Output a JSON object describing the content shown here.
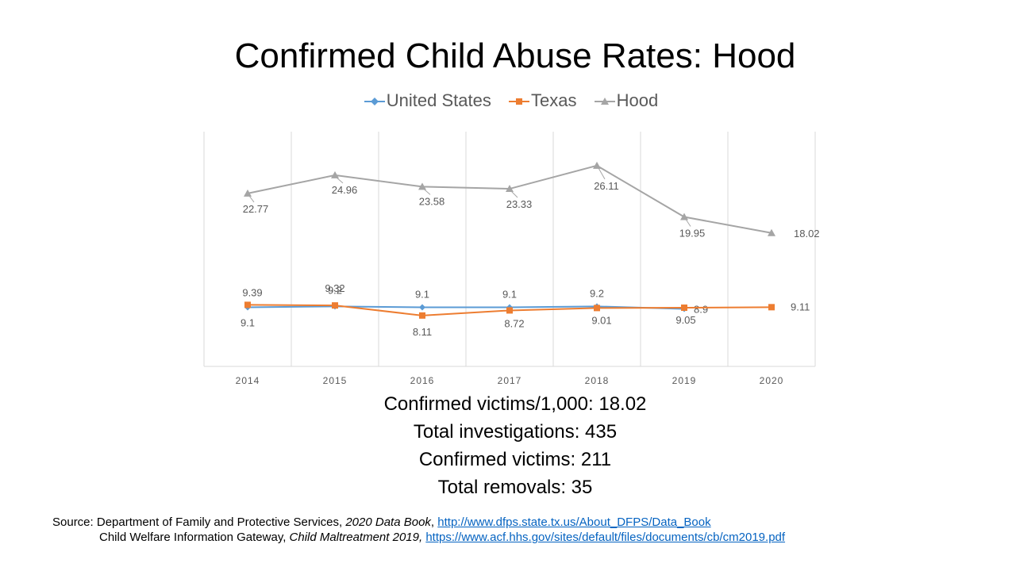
{
  "chart_data": {
    "type": "line",
    "title": "Confirmed Child Abuse Rates: Hood",
    "categories": [
      "2014",
      "2015",
      "2016",
      "2017",
      "2018",
      "2019",
      "2020"
    ],
    "series": [
      {
        "name": "United States",
        "values": [
          9.1,
          9.2,
          9.1,
          9.1,
          9.2,
          8.9,
          null
        ],
        "color": "#5b9bd5",
        "marker": "diamond",
        "labels": [
          "9.1",
          "9.2",
          "9.1",
          "9.1",
          "9.2",
          "8.9",
          ""
        ]
      },
      {
        "name": "Texas",
        "values": [
          9.39,
          9.32,
          8.11,
          8.72,
          9.01,
          9.05,
          9.11
        ],
        "color": "#ed7d31",
        "marker": "square",
        "labels": [
          "9.39",
          "9.32",
          "8.11",
          "8.72",
          "9.01",
          "9.05",
          "9.11"
        ]
      },
      {
        "name": "Hood",
        "values": [
          22.77,
          24.96,
          23.58,
          23.33,
          26.11,
          19.95,
          18.02
        ],
        "color": "#a5a5a5",
        "marker": "triangle",
        "labels": [
          "22.77",
          "24.96",
          "23.58",
          "23.33",
          "26.11",
          "19.95",
          "18.02"
        ]
      }
    ],
    "grid": "vertical",
    "legend": "top"
  },
  "stats": [
    "Confirmed victims/1,000: 18.02",
    "Total investigations: 435",
    "Confirmed victims: 211",
    "Total removals: 35"
  ],
  "source": {
    "prefix": "Source: ",
    "line1_text": "Department of Family and Protective Services, ",
    "line1_italic": "2020 Data Book",
    "line1_sep": ", ",
    "line1_link": "http://www.dfps.state.tx.us/About_DFPS/Data_Book",
    "line2_text": "Child Welfare Information Gateway, ",
    "line2_italic": "Child Maltreatment 2019,",
    "line2_sep": " ",
    "line2_link": "https://www.acf.hhs.gov/sites/default/files/documents/cb/cm2019.pdf"
  }
}
